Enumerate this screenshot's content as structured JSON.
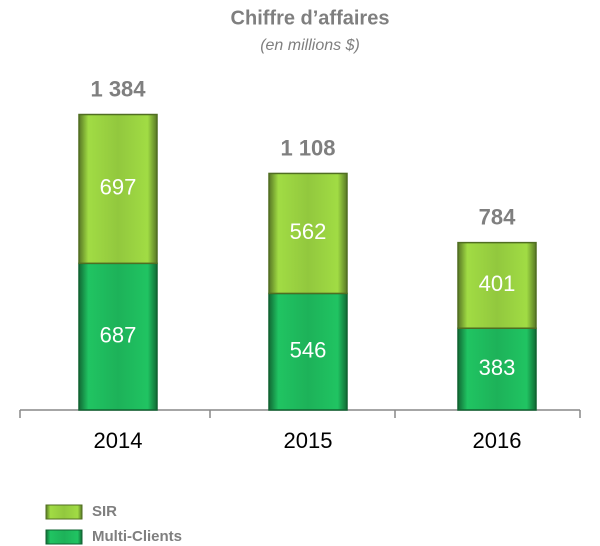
{
  "chart_data": {
    "type": "stacked_bar",
    "title": "Chiffre d’affaires",
    "subtitle": "(en millions $)",
    "categories": [
      "2014",
      "2015",
      "2016"
    ],
    "series": [
      {
        "name": "Multi-Clients",
        "color": "#1db259",
        "values": [
          687,
          546,
          383
        ]
      },
      {
        "name": "SIR",
        "color": "#92c83e",
        "values": [
          697,
          562,
          401
        ]
      }
    ],
    "totals": [
      1384,
      1108,
      784
    ],
    "total_labels": [
      "1 384",
      "1 108",
      "784"
    ]
  }
}
